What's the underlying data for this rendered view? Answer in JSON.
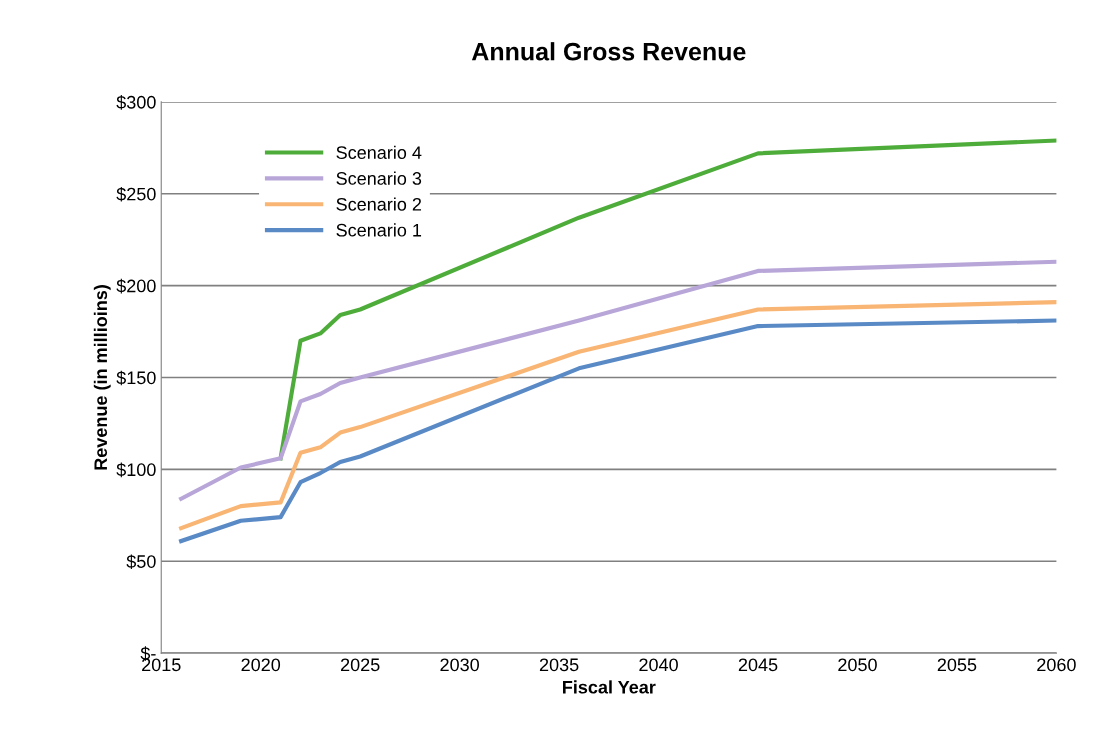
{
  "chart_data": {
    "type": "line",
    "title": "Annual Gross Revenue",
    "xlabel": "Fiscal Year",
    "ylabel": "Revenue (in millioins)",
    "x": [
      2016,
      2019,
      2021,
      2022,
      2023,
      2024,
      2025,
      2036,
      2045,
      2060
    ],
    "series": [
      {
        "name": "Scenario 4",
        "color": "#4ead3a",
        "values": [
          null,
          null,
          106,
          170,
          174,
          184,
          187,
          237,
          272,
          279
        ]
      },
      {
        "name": "Scenario 3",
        "color": "#b8a6d8",
        "values": [
          84,
          101,
          106,
          137,
          141,
          147,
          150,
          181,
          208,
          213
        ]
      },
      {
        "name": "Scenario 2",
        "color": "#f9b574",
        "values": [
          68,
          80,
          82,
          109,
          112,
          120,
          123,
          164,
          187,
          191
        ]
      },
      {
        "name": "Scenario 1",
        "color": "#5a8ac6",
        "values": [
          61,
          72,
          74,
          93,
          98,
          104,
          107,
          155,
          178,
          181
        ]
      }
    ],
    "xlim": [
      2015,
      2060
    ],
    "xticks": [
      2015,
      2020,
      2025,
      2030,
      2035,
      2040,
      2045,
      2050,
      2055,
      2060
    ],
    "ylim": [
      0,
      300
    ],
    "yticks": [
      {
        "value": 0,
        "label": "$-"
      },
      {
        "value": 50,
        "label": "$50"
      },
      {
        "value": 100,
        "label": "$100"
      },
      {
        "value": 150,
        "label": "$150"
      },
      {
        "value": 200,
        "label": "$200"
      },
      {
        "value": 250,
        "label": "$250"
      },
      {
        "value": 300,
        "label": "$300"
      }
    ],
    "grid": "y",
    "legend": "top left",
    "marker": "none",
    "line_style": "solid"
  }
}
